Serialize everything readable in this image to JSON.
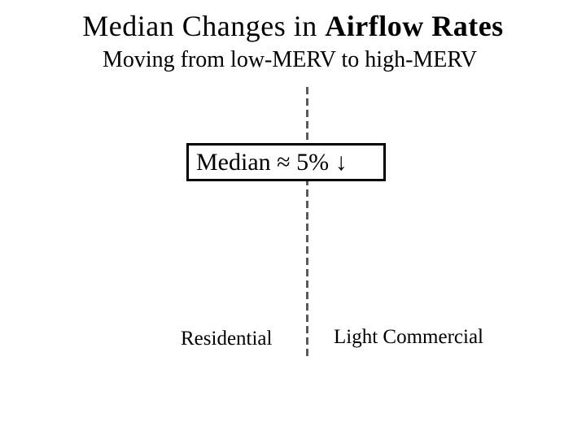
{
  "slide": {
    "title_regular": "Median Changes in ",
    "title_bold": "Airflow Rates",
    "subtitle": "Moving from low-MERV to high-MERV",
    "callout_label": "Median ≈ 5% ↓",
    "categories": {
      "left": "Residential",
      "right": "Light Commercial"
    },
    "colors": {
      "background": "#ffffff",
      "text": "#000000",
      "divider_dash": "#5a5a5a",
      "callout_border": "#000000",
      "callout_fill": "#ffffff"
    }
  }
}
